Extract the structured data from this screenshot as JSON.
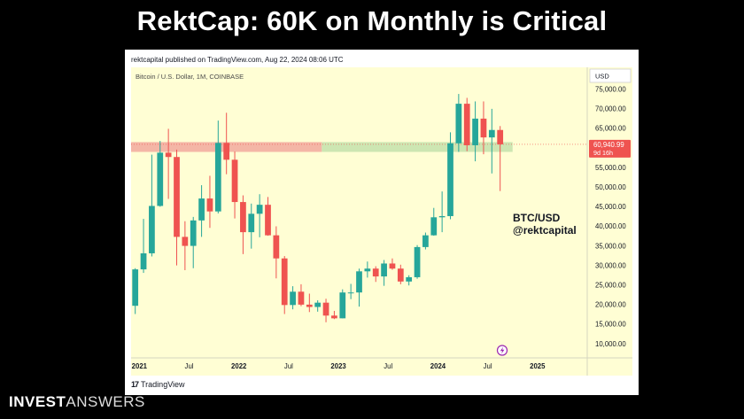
{
  "slide": {
    "title": "RektCap: 60K on Monthly is Critical",
    "brand_bold": "INVEST",
    "brand_light": "ANSWERS"
  },
  "card": {
    "published": "rektcapital published on TradingView.com, Aug 22, 2024 08:06 UTC",
    "footer_logo": "TradingView"
  },
  "chart_data": {
    "type": "candlestick",
    "symbol": "Bitcoin / U.S. Dollar, 1M, COINBASE",
    "annotation_line1": "BTC/USD",
    "annotation_line2": "@rektcapital",
    "currency": "USD",
    "y_ticks": [
      "10,000.00",
      "15,000.00",
      "20,000.00",
      "25,000.00",
      "30,000.00",
      "35,000.00",
      "40,000.00",
      "45,000.00",
      "50,000.00",
      "55,000.00",
      "60,000.00",
      "65,000.00",
      "70,000.00",
      "75,000.00"
    ],
    "y_tick_values": [
      10000,
      15000,
      20000,
      25000,
      30000,
      35000,
      40000,
      45000,
      50000,
      55000,
      60000,
      65000,
      70000,
      75000
    ],
    "x_tick_labels": [
      "2021",
      "Jul",
      "2022",
      "Jul",
      "2023",
      "Jul",
      "2024",
      "Jul",
      "2025"
    ],
    "x_tick_dates": [
      "2021-01",
      "2021-07",
      "2022-01",
      "2022-07",
      "2023-01",
      "2023-07",
      "2024-01",
      "2024-07",
      "2025-01"
    ],
    "y_range": [
      6400,
      80600
    ],
    "x_range": [
      "2020-12",
      "2025-07"
    ],
    "last_price_label": "60,940.99",
    "countdown_label": "9d 16h",
    "last_price": 60940.99,
    "zone": {
      "low": 59000,
      "high": 61500,
      "red_until": "2022-11",
      "green_until": "2024-10"
    },
    "colors": {
      "up": "#26a69a",
      "down": "#ef5350",
      "background": "#fffed4",
      "zone_red": "#f4b6a6",
      "zone_green": "#cde6b2"
    },
    "candles": [
      {
        "date": "2020-12",
        "open": 19700,
        "high": 29300,
        "low": 17600,
        "close": 29000
      },
      {
        "date": "2021-01",
        "open": 29000,
        "high": 41900,
        "low": 28100,
        "close": 33100
      },
      {
        "date": "2021-02",
        "open": 33100,
        "high": 58300,
        "low": 32300,
        "close": 45200
      },
      {
        "date": "2021-03",
        "open": 45200,
        "high": 61800,
        "low": 45000,
        "close": 58800
      },
      {
        "date": "2021-04",
        "open": 58800,
        "high": 64900,
        "low": 47000,
        "close": 57700
      },
      {
        "date": "2021-05",
        "open": 57700,
        "high": 59600,
        "low": 30000,
        "close": 37300
      },
      {
        "date": "2021-06",
        "open": 37300,
        "high": 41300,
        "low": 28800,
        "close": 35000
      },
      {
        "date": "2021-07",
        "open": 35000,
        "high": 42400,
        "low": 29300,
        "close": 41500
      },
      {
        "date": "2021-08",
        "open": 41500,
        "high": 50500,
        "low": 37300,
        "close": 47100
      },
      {
        "date": "2021-09",
        "open": 47100,
        "high": 52900,
        "low": 39600,
        "close": 43800
      },
      {
        "date": "2021-10",
        "open": 43800,
        "high": 67000,
        "low": 43300,
        "close": 61300
      },
      {
        "date": "2021-11",
        "open": 61300,
        "high": 69000,
        "low": 53300,
        "close": 57000
      },
      {
        "date": "2021-12",
        "open": 57000,
        "high": 59100,
        "low": 42000,
        "close": 46200
      },
      {
        "date": "2022-01",
        "open": 46200,
        "high": 47900,
        "low": 32900,
        "close": 38500
      },
      {
        "date": "2022-02",
        "open": 38500,
        "high": 45800,
        "low": 34300,
        "close": 43200
      },
      {
        "date": "2022-03",
        "open": 43200,
        "high": 48200,
        "low": 37200,
        "close": 45500
      },
      {
        "date": "2022-04",
        "open": 45500,
        "high": 47500,
        "low": 37600,
        "close": 37700
      },
      {
        "date": "2022-05",
        "open": 37700,
        "high": 40000,
        "low": 26700,
        "close": 31800
      },
      {
        "date": "2022-06",
        "open": 31800,
        "high": 32400,
        "low": 17600,
        "close": 19900
      },
      {
        "date": "2022-07",
        "open": 19900,
        "high": 24700,
        "low": 18800,
        "close": 23300
      },
      {
        "date": "2022-08",
        "open": 23300,
        "high": 25200,
        "low": 19600,
        "close": 20000
      },
      {
        "date": "2022-09",
        "open": 20000,
        "high": 22800,
        "low": 18100,
        "close": 19400
      },
      {
        "date": "2022-10",
        "open": 19400,
        "high": 21100,
        "low": 18200,
        "close": 20500
      },
      {
        "date": "2022-11",
        "open": 20500,
        "high": 21500,
        "low": 15500,
        "close": 17200
      },
      {
        "date": "2022-12",
        "open": 17200,
        "high": 18400,
        "low": 16300,
        "close": 16500
      },
      {
        "date": "2023-01",
        "open": 16500,
        "high": 23900,
        "low": 16500,
        "close": 23100
      },
      {
        "date": "2023-02",
        "open": 23100,
        "high": 25300,
        "low": 21400,
        "close": 23100
      },
      {
        "date": "2023-03",
        "open": 23100,
        "high": 29200,
        "low": 19500,
        "close": 28500
      },
      {
        "date": "2023-04",
        "open": 28500,
        "high": 31000,
        "low": 26900,
        "close": 29200
      },
      {
        "date": "2023-05",
        "open": 29200,
        "high": 29800,
        "low": 25800,
        "close": 27200
      },
      {
        "date": "2023-06",
        "open": 27200,
        "high": 31400,
        "low": 24800,
        "close": 30500
      },
      {
        "date": "2023-07",
        "open": 30500,
        "high": 31800,
        "low": 28900,
        "close": 29200
      },
      {
        "date": "2023-08",
        "open": 29200,
        "high": 30200,
        "low": 25200,
        "close": 25900
      },
      {
        "date": "2023-09",
        "open": 25900,
        "high": 27500,
        "low": 24900,
        "close": 27000
      },
      {
        "date": "2023-10",
        "open": 27000,
        "high": 35200,
        "low": 26600,
        "close": 34700
      },
      {
        "date": "2023-11",
        "open": 34700,
        "high": 38400,
        "low": 34100,
        "close": 37700
      },
      {
        "date": "2023-12",
        "open": 37700,
        "high": 44700,
        "low": 37600,
        "close": 42300
      },
      {
        "date": "2024-01",
        "open": 42300,
        "high": 48900,
        "low": 38500,
        "close": 42600
      },
      {
        "date": "2024-02",
        "open": 42600,
        "high": 64000,
        "low": 41800,
        "close": 61200
      },
      {
        "date": "2024-03",
        "open": 61200,
        "high": 73800,
        "low": 59000,
        "close": 71300
      },
      {
        "date": "2024-04",
        "open": 71300,
        "high": 72800,
        "low": 59200,
        "close": 60700
      },
      {
        "date": "2024-05",
        "open": 60700,
        "high": 71900,
        "low": 56600,
        "close": 67500
      },
      {
        "date": "2024-06",
        "open": 67500,
        "high": 71900,
        "low": 58400,
        "close": 62700
      },
      {
        "date": "2024-07",
        "open": 62700,
        "high": 70000,
        "low": 53500,
        "close": 64600
      },
      {
        "date": "2024-08",
        "open": 64600,
        "high": 65600,
        "low": 49000,
        "close": 60940
      }
    ]
  }
}
